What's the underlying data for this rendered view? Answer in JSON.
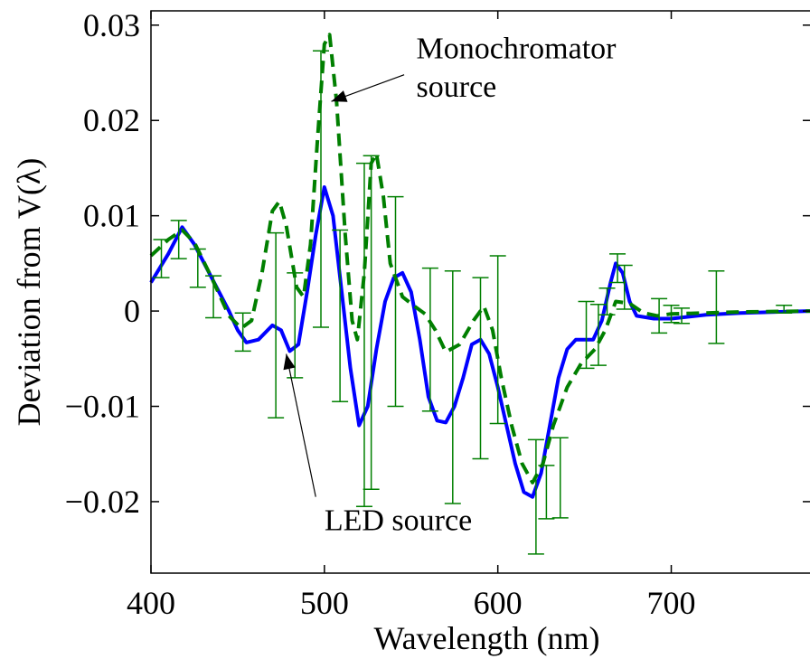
{
  "chart_data": {
    "type": "line",
    "title": "",
    "xlabel": "Wavelength (nm)",
    "ylabel": "Deviation from V(λ)",
    "xlim": [
      400,
      780
    ],
    "ylim": [
      -0.0275,
      0.0315
    ],
    "x_ticks": [
      400,
      500,
      600,
      700
    ],
    "x_tick_labels": [
      "400",
      "500",
      "600",
      "700"
    ],
    "y_ticks": [
      0.03,
      0.02,
      0.01,
      0,
      -0.01,
      -0.02
    ],
    "y_tick_labels": [
      "0.03",
      "0.02",
      "0.01",
      "0",
      "−0.01",
      "−0.02"
    ],
    "grid": false,
    "series": [
      {
        "name": "",
        "style": "solid",
        "color": "#0000ff",
        "points": [
          [
            400,
            0.003
          ],
          [
            410,
            0.006
          ],
          [
            418,
            0.0088
          ],
          [
            425,
            0.007
          ],
          [
            435,
            0.0035
          ],
          [
            445,
            0.0
          ],
          [
            450,
            -0.002
          ],
          [
            455,
            -0.0033
          ],
          [
            462,
            -0.003
          ],
          [
            470,
            -0.0015
          ],
          [
            475,
            -0.002
          ],
          [
            480,
            -0.0042
          ],
          [
            485,
            -0.0035
          ],
          [
            490,
            0.002
          ],
          [
            495,
            0.008
          ],
          [
            500,
            0.013
          ],
          [
            505,
            0.01
          ],
          [
            510,
            0.002
          ],
          [
            515,
            -0.006
          ],
          [
            520,
            -0.012
          ],
          [
            525,
            -0.01
          ],
          [
            530,
            -0.004
          ],
          [
            535,
            0.001
          ],
          [
            540,
            0.0035
          ],
          [
            545,
            0.004
          ],
          [
            550,
            0.002
          ],
          [
            555,
            -0.003
          ],
          [
            560,
            -0.009
          ],
          [
            565,
            -0.0115
          ],
          [
            570,
            -0.0117
          ],
          [
            575,
            -0.01
          ],
          [
            580,
            -0.007
          ],
          [
            585,
            -0.0035
          ],
          [
            590,
            -0.003
          ],
          [
            595,
            -0.0045
          ],
          [
            600,
            -0.008
          ],
          [
            605,
            -0.012
          ],
          [
            610,
            -0.016
          ],
          [
            615,
            -0.019
          ],
          [
            620,
            -0.0195
          ],
          [
            625,
            -0.017
          ],
          [
            630,
            -0.012
          ],
          [
            635,
            -0.007
          ],
          [
            640,
            -0.004
          ],
          [
            645,
            -0.003
          ],
          [
            650,
            -0.003
          ],
          [
            655,
            -0.003
          ],
          [
            660,
            -0.001
          ],
          [
            665,
            0.003
          ],
          [
            668,
            0.005
          ],
          [
            672,
            0.004
          ],
          [
            676,
            0.001
          ],
          [
            680,
            -0.0005
          ],
          [
            690,
            -0.0008
          ],
          [
            700,
            -0.0008
          ],
          [
            710,
            -0.0006
          ],
          [
            720,
            -0.0004
          ],
          [
            730,
            -0.0003
          ],
          [
            740,
            -0.0002
          ],
          [
            760,
            -0.0001
          ],
          [
            780,
            0.0
          ]
        ]
      },
      {
        "name": "",
        "style": "dashed",
        "color": "#007f00",
        "points": [
          [
            400,
            0.0058
          ],
          [
            410,
            0.0075
          ],
          [
            418,
            0.0085
          ],
          [
            425,
            0.0072
          ],
          [
            435,
            0.0035
          ],
          [
            445,
            -0.0005
          ],
          [
            452,
            -0.0018
          ],
          [
            458,
            -0.001
          ],
          [
            464,
            0.004
          ],
          [
            470,
            0.0105
          ],
          [
            474,
            0.0115
          ],
          [
            478,
            0.009
          ],
          [
            484,
            0.0025
          ],
          [
            488,
            0.0015
          ],
          [
            492,
            0.007
          ],
          [
            496,
            0.018
          ],
          [
            500,
            0.028
          ],
          [
            503,
            0.029
          ],
          [
            507,
            0.022
          ],
          [
            512,
            0.008
          ],
          [
            516,
            -0.001
          ],
          [
            519,
            -0.003
          ],
          [
            523,
            0.004
          ],
          [
            527,
            0.0155
          ],
          [
            530,
            0.0165
          ],
          [
            534,
            0.012
          ],
          [
            538,
            0.005
          ],
          [
            545,
            0.0015
          ],
          [
            552,
            0.0005
          ],
          [
            558,
            -0.0003
          ],
          [
            564,
            -0.002
          ],
          [
            570,
            -0.0043
          ],
          [
            578,
            -0.0035
          ],
          [
            586,
            -0.001
          ],
          [
            592,
            0.0005
          ],
          [
            597,
            -0.002
          ],
          [
            602,
            -0.007
          ],
          [
            608,
            -0.012
          ],
          [
            614,
            -0.016
          ],
          [
            620,
            -0.018
          ],
          [
            626,
            -0.016
          ],
          [
            632,
            -0.012
          ],
          [
            640,
            -0.008
          ],
          [
            648,
            -0.0055
          ],
          [
            656,
            -0.004
          ],
          [
            662,
            -0.002
          ],
          [
            668,
            0.001
          ],
          [
            676,
            0.0008
          ],
          [
            684,
            -0.0002
          ],
          [
            692,
            -0.0005
          ],
          [
            700,
            -0.0003
          ],
          [
            720,
            -0.0002
          ],
          [
            740,
            -0.0001
          ],
          [
            780,
            0.0
          ]
        ]
      }
    ],
    "error_bars": [
      {
        "x": 406,
        "y": 0.0055,
        "err": 0.002
      },
      {
        "x": 416,
        "y": 0.0075,
        "err": 0.002
      },
      {
        "x": 427,
        "y": 0.0045,
        "err": 0.002
      },
      {
        "x": 436,
        "y": 0.0015,
        "err": 0.0022
      },
      {
        "x": 453,
        "y": -0.0022,
        "err": 0.002
      },
      {
        "x": 472,
        "y": -0.0015,
        "err": 0.0097
      },
      {
        "x": 483,
        "y": -0.0015,
        "err": 0.0055
      },
      {
        "x": 498,
        "y": 0.0128,
        "err": 0.0145
      },
      {
        "x": 509,
        "y": -0.0005,
        "err": 0.009
      },
      {
        "x": 523,
        "y": -0.0025,
        "err": 0.018
      },
      {
        "x": 527,
        "y": -0.0012,
        "err": 0.0175
      },
      {
        "x": 541,
        "y": 0.001,
        "err": 0.011
      },
      {
        "x": 561,
        "y": -0.003,
        "err": 0.0075
      },
      {
        "x": 574,
        "y": -0.008,
        "err": 0.0122
      },
      {
        "x": 590,
        "y": -0.006,
        "err": 0.0095
      },
      {
        "x": 600,
        "y": -0.003,
        "err": 0.0088
      },
      {
        "x": 622,
        "y": -0.0195,
        "err": 0.006
      },
      {
        "x": 628,
        "y": -0.019,
        "err": 0.0028
      },
      {
        "x": 636,
        "y": -0.0175,
        "err": 0.0042
      },
      {
        "x": 651,
        "y": -0.0025,
        "err": 0.0035
      },
      {
        "x": 658,
        "y": -0.0025,
        "err": 0.0032
      },
      {
        "x": 663,
        "y": 0.001,
        "err": 0.0014
      },
      {
        "x": 669,
        "y": 0.0045,
        "err": 0.0015
      },
      {
        "x": 673,
        "y": 0.0025,
        "err": 0.0023
      },
      {
        "x": 693,
        "y": -0.0005,
        "err": 0.0018
      },
      {
        "x": 700,
        "y": -0.0003,
        "err": 0.0009
      },
      {
        "x": 706,
        "y": -0.0005,
        "err": 0.0008
      },
      {
        "x": 726,
        "y": 0.0004,
        "err": 0.0038
      },
      {
        "x": 765,
        "y": 0.0002,
        "err": 0.0004
      }
    ],
    "error_bar_color": "#007f00",
    "annotations": [
      {
        "text": "Monochromator",
        "x": 553,
        "y": 0.0265
      },
      {
        "text": "source",
        "x": 553,
        "y": 0.0225
      },
      {
        "text": "LED source",
        "x": 500,
        "y": -0.023
      }
    ],
    "arrows": [
      {
        "from": [
          546,
          0.0248
        ],
        "to": [
          504,
          0.022
        ]
      },
      {
        "from": [
          495,
          -0.0195
        ],
        "to": [
          478,
          -0.0045
        ]
      }
    ]
  }
}
